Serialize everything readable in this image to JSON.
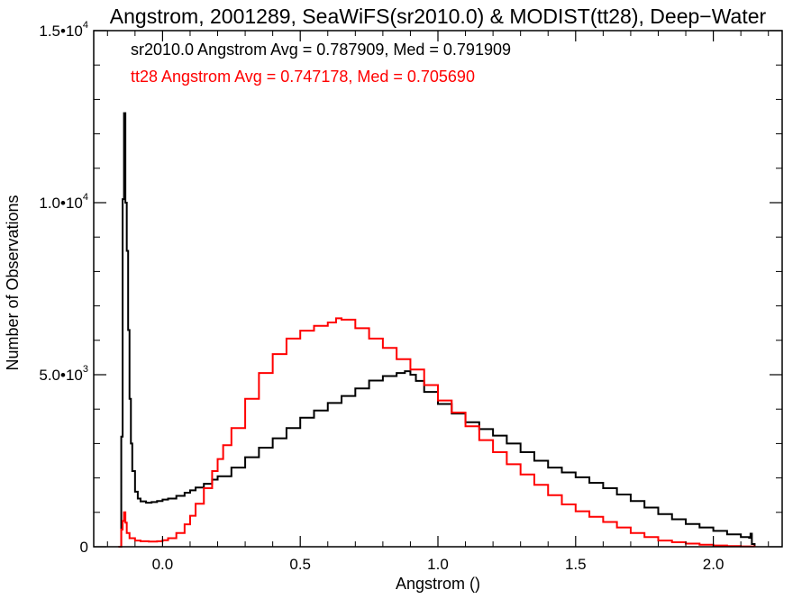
{
  "chart_data": {
    "type": "line",
    "title": "Angstrom, 2001289, SeaWiFS(sr2010.0) & MODIST(tt28), Deep−Water",
    "xlabel": "Angstrom ()",
    "ylabel": "Number of Observations",
    "xlim": [
      -0.25,
      2.25
    ],
    "ylim": [
      0,
      15000
    ],
    "x_ticks": [
      0.0,
      0.5,
      1.0,
      1.5,
      2.0
    ],
    "x_tick_labels": [
      "0.0",
      "0.5",
      "1.0",
      "1.5",
      "2.0"
    ],
    "y_ticks": [
      0,
      5000,
      10000,
      15000
    ],
    "y_tick_labels": [
      {
        "mantissa": "0",
        "exponent": ""
      },
      {
        "mantissa": "5.0•10",
        "exponent": "3"
      },
      {
        "mantissa": "1.0•10",
        "exponent": "4"
      },
      {
        "mantissa": "1.5•10",
        "exponent": "4"
      }
    ],
    "grid": false,
    "legend": "none",
    "annotations": [
      {
        "text": "sr2010.0 Angstrom Avg = 0.787909, Med = 0.791909",
        "color": "#000000"
      },
      {
        "text": "tt28 Angstrom Avg = 0.747178, Med = 0.705690",
        "color": "#ff0000"
      }
    ],
    "series": [
      {
        "color": "#000000",
        "style": "step",
        "points": [
          [
            -0.16,
            0
          ],
          [
            -0.15,
            3200
          ],
          [
            -0.145,
            10100
          ],
          [
            -0.14,
            12600
          ],
          [
            -0.135,
            10000
          ],
          [
            -0.13,
            8600
          ],
          [
            -0.125,
            6300
          ],
          [
            -0.12,
            4300
          ],
          [
            -0.115,
            3000
          ],
          [
            -0.11,
            2200
          ],
          [
            -0.1,
            1600
          ],
          [
            -0.09,
            1400
          ],
          [
            -0.08,
            1320
          ],
          [
            -0.06,
            1280
          ],
          [
            -0.04,
            1300
          ],
          [
            -0.02,
            1330
          ],
          [
            0.0,
            1370
          ],
          [
            0.02,
            1400
          ],
          [
            0.05,
            1480
          ],
          [
            0.08,
            1570
          ],
          [
            0.1,
            1640
          ],
          [
            0.12,
            1720
          ],
          [
            0.15,
            1830
          ],
          [
            0.18,
            1950
          ],
          [
            0.2,
            2050
          ],
          [
            0.25,
            2300
          ],
          [
            0.3,
            2600
          ],
          [
            0.35,
            2880
          ],
          [
            0.4,
            3150
          ],
          [
            0.45,
            3450
          ],
          [
            0.5,
            3750
          ],
          [
            0.55,
            3960
          ],
          [
            0.6,
            4180
          ],
          [
            0.65,
            4380
          ],
          [
            0.7,
            4600
          ],
          [
            0.75,
            4830
          ],
          [
            0.8,
            4960
          ],
          [
            0.85,
            5050
          ],
          [
            0.88,
            5100
          ],
          [
            0.9,
            5000
          ],
          [
            0.92,
            4820
          ],
          [
            0.95,
            4500
          ],
          [
            1.0,
            4150
          ],
          [
            1.05,
            3870
          ],
          [
            1.1,
            3620
          ],
          [
            1.15,
            3420
          ],
          [
            1.2,
            3230
          ],
          [
            1.25,
            3000
          ],
          [
            1.3,
            2750
          ],
          [
            1.35,
            2500
          ],
          [
            1.4,
            2300
          ],
          [
            1.45,
            2160
          ],
          [
            1.5,
            2020
          ],
          [
            1.55,
            1860
          ],
          [
            1.6,
            1700
          ],
          [
            1.65,
            1520
          ],
          [
            1.7,
            1330
          ],
          [
            1.75,
            1140
          ],
          [
            1.8,
            950
          ],
          [
            1.85,
            800
          ],
          [
            1.9,
            660
          ],
          [
            1.95,
            560
          ],
          [
            2.0,
            460
          ],
          [
            2.05,
            360
          ],
          [
            2.1,
            280
          ],
          [
            2.13,
            260
          ],
          [
            2.135,
            380
          ],
          [
            2.14,
            80
          ],
          [
            2.15,
            0
          ]
        ]
      },
      {
        "color": "#ff0000",
        "style": "step",
        "points": [
          [
            -0.16,
            0
          ],
          [
            -0.15,
            500
          ],
          [
            -0.145,
            750
          ],
          [
            -0.14,
            1000
          ],
          [
            -0.135,
            700
          ],
          [
            -0.13,
            400
          ],
          [
            -0.12,
            250
          ],
          [
            -0.1,
            180
          ],
          [
            -0.08,
            160
          ],
          [
            -0.05,
            150
          ],
          [
            -0.02,
            160
          ],
          [
            0.0,
            190
          ],
          [
            0.02,
            250
          ],
          [
            0.05,
            400
          ],
          [
            0.08,
            650
          ],
          [
            0.1,
            900
          ],
          [
            0.12,
            1250
          ],
          [
            0.15,
            1700
          ],
          [
            0.18,
            2200
          ],
          [
            0.2,
            2550
          ],
          [
            0.22,
            2950
          ],
          [
            0.25,
            3450
          ],
          [
            0.3,
            4300
          ],
          [
            0.35,
            5050
          ],
          [
            0.4,
            5600
          ],
          [
            0.45,
            6050
          ],
          [
            0.5,
            6280
          ],
          [
            0.55,
            6420
          ],
          [
            0.6,
            6520
          ],
          [
            0.63,
            6640
          ],
          [
            0.65,
            6600
          ],
          [
            0.7,
            6350
          ],
          [
            0.75,
            6050
          ],
          [
            0.8,
            5780
          ],
          [
            0.85,
            5450
          ],
          [
            0.9,
            5150
          ],
          [
            0.95,
            4700
          ],
          [
            1.0,
            4250
          ],
          [
            1.05,
            3900
          ],
          [
            1.1,
            3500
          ],
          [
            1.15,
            3100
          ],
          [
            1.2,
            2750
          ],
          [
            1.25,
            2400
          ],
          [
            1.3,
            2100
          ],
          [
            1.35,
            1800
          ],
          [
            1.4,
            1500
          ],
          [
            1.45,
            1230
          ],
          [
            1.5,
            1030
          ],
          [
            1.55,
            870
          ],
          [
            1.6,
            720
          ],
          [
            1.65,
            560
          ],
          [
            1.7,
            400
          ],
          [
            1.75,
            280
          ],
          [
            1.8,
            180
          ],
          [
            1.85,
            130
          ],
          [
            1.9,
            90
          ],
          [
            1.95,
            60
          ],
          [
            2.0,
            35
          ],
          [
            2.05,
            20
          ],
          [
            2.1,
            10
          ],
          [
            2.15,
            0
          ]
        ]
      }
    ]
  }
}
